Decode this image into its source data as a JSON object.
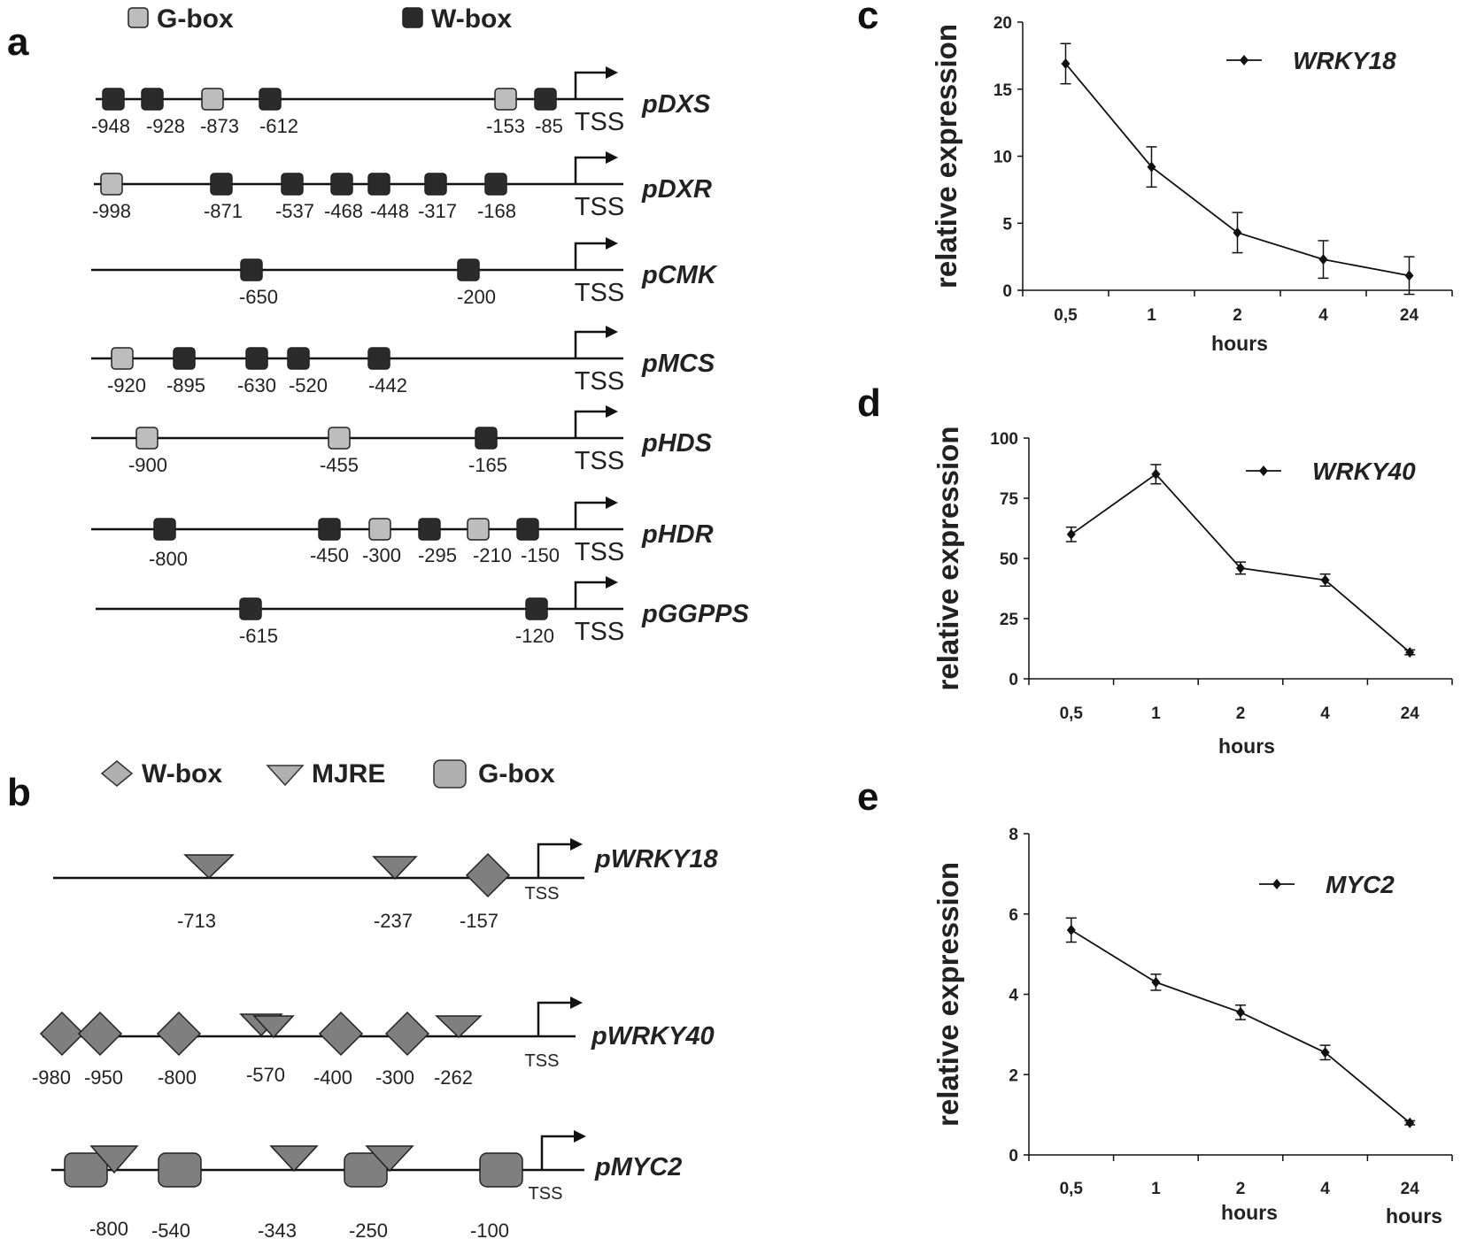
{
  "panels": {
    "a": "a",
    "b": "b",
    "c": "c",
    "d": "d",
    "e": "e"
  },
  "colors": {
    "gbox_a": "#bdbdbd",
    "wbox_a": "#2b2b2b",
    "motif_b": "#7f7f7f",
    "line": "#111111"
  },
  "panel_a": {
    "legend": [
      {
        "type": "gbox",
        "label": "G-box"
      },
      {
        "type": "wbox",
        "label": "W-box"
      }
    ],
    "tss_label": "TSS",
    "promoters": [
      {
        "name": "pDXS",
        "motifs": [
          {
            "type": "wbox",
            "pos": "-948"
          },
          {
            "type": "wbox",
            "pos": "-928"
          },
          {
            "type": "gbox",
            "pos": "-873"
          },
          {
            "type": "wbox",
            "pos": "-612"
          },
          {
            "type": "gbox",
            "pos": "-153"
          },
          {
            "type": "wbox",
            "pos": "-85"
          }
        ]
      },
      {
        "name": "pDXR",
        "motifs": [
          {
            "type": "gbox",
            "pos": "-998"
          },
          {
            "type": "wbox",
            "pos": "-871"
          },
          {
            "type": "wbox",
            "pos": "-537"
          },
          {
            "type": "wbox",
            "pos": "-468"
          },
          {
            "type": "wbox",
            "pos": "-448"
          },
          {
            "type": "wbox",
            "pos": "-317"
          },
          {
            "type": "wbox",
            "pos": "-168"
          }
        ]
      },
      {
        "name": "pCMK",
        "motifs": [
          {
            "type": "wbox",
            "pos": "-650"
          },
          {
            "type": "wbox",
            "pos": "-200"
          }
        ]
      },
      {
        "name": "pMCS",
        "motifs": [
          {
            "type": "gbox",
            "pos": "-920"
          },
          {
            "type": "wbox",
            "pos": "-895"
          },
          {
            "type": "wbox",
            "pos": "-630"
          },
          {
            "type": "wbox",
            "pos": "-520"
          },
          {
            "type": "wbox",
            "pos": "-442"
          }
        ]
      },
      {
        "name": "pHDS",
        "motifs": [
          {
            "type": "gbox",
            "pos": "-900"
          },
          {
            "type": "gbox",
            "pos": "-455"
          },
          {
            "type": "wbox",
            "pos": "-165"
          }
        ]
      },
      {
        "name": "pHDR",
        "motifs": [
          {
            "type": "wbox",
            "pos": "-800"
          },
          {
            "type": "wbox",
            "pos": "-450"
          },
          {
            "type": "gbox",
            "pos": "-300"
          },
          {
            "type": "wbox",
            "pos": "-295"
          },
          {
            "type": "gbox",
            "pos": "-210"
          },
          {
            "type": "wbox",
            "pos": "-150"
          }
        ]
      },
      {
        "name": "pGGPPS",
        "motifs": [
          {
            "type": "wbox",
            "pos": "-615"
          },
          {
            "type": "wbox",
            "pos": "-120"
          }
        ]
      }
    ]
  },
  "panel_b": {
    "legend": [
      {
        "type": "wbox",
        "label": "W-box"
      },
      {
        "type": "mjre",
        "label": "MJRE"
      },
      {
        "type": "gbox",
        "label": "G-box"
      }
    ],
    "tss_label": "TSS",
    "promoters": [
      {
        "name": "pWRKY18",
        "motifs": [
          {
            "type": "mjre",
            "pos": "-713"
          },
          {
            "type": "mjre",
            "pos": "-237"
          },
          {
            "type": "wbox",
            "pos": "-157"
          }
        ]
      },
      {
        "name": "pWRKY40",
        "motifs": [
          {
            "type": "wbox",
            "pos": "-980"
          },
          {
            "type": "wbox",
            "pos": "-950"
          },
          {
            "type": "wbox",
            "pos": "-800"
          },
          {
            "type": "mjre",
            "pos": "-570"
          },
          {
            "type": "wbox",
            "pos": "-400"
          },
          {
            "type": "wbox",
            "pos": "-300"
          },
          {
            "type": "mjre",
            "pos": "-262"
          }
        ]
      },
      {
        "name": "pMYC2",
        "motifs": [
          {
            "type": "gbox",
            "pos": "-800"
          },
          {
            "type": "gbox",
            "pos": "-540"
          },
          {
            "type": "mjre",
            "pos": "-343"
          },
          {
            "type": "gbox",
            "pos": "-250"
          },
          {
            "type": "gbox",
            "pos": "-100"
          }
        ]
      }
    ]
  },
  "chart_data": [
    {
      "panel": "c",
      "type": "line",
      "series_name": "WRKY18",
      "categories": [
        "0,5",
        "1",
        "2",
        "4",
        "24"
      ],
      "values": [
        16.9,
        9.2,
        4.3,
        2.3,
        1.1
      ],
      "errors": [
        1.5,
        1.5,
        1.5,
        1.4,
        1.4
      ],
      "ylabel": "relative expression",
      "xlabel": "hours",
      "ylim": [
        0,
        20
      ],
      "yticks": [
        "0",
        "5",
        "10",
        "15",
        "20"
      ]
    },
    {
      "panel": "d",
      "type": "line",
      "series_name": "WRKY40",
      "categories": [
        "0,5",
        "1",
        "2",
        "4",
        "24"
      ],
      "values": [
        60,
        85,
        46,
        41,
        11
      ],
      "errors": [
        3,
        4,
        2.5,
        2.5,
        1
      ],
      "ylabel": "relative expression",
      "xlabel": "hours",
      "ylim": [
        0,
        100
      ],
      "yticks": [
        "0",
        "25",
        "50",
        "75",
        "100"
      ]
    },
    {
      "panel": "e",
      "type": "line",
      "series_name": "MYC2",
      "categories": [
        "0,5",
        "1",
        "2",
        "4",
        "24"
      ],
      "values": [
        5.6,
        4.3,
        3.55,
        2.55,
        0.8
      ],
      "errors": [
        0.3,
        0.2,
        0.18,
        0.18,
        0.05
      ],
      "ylabel": "relative expression",
      "xlabel": "hours",
      "xlabel2": "hours",
      "ylim": [
        0,
        8
      ],
      "yticks": [
        "0",
        "2",
        "4",
        "6",
        "8"
      ]
    }
  ]
}
